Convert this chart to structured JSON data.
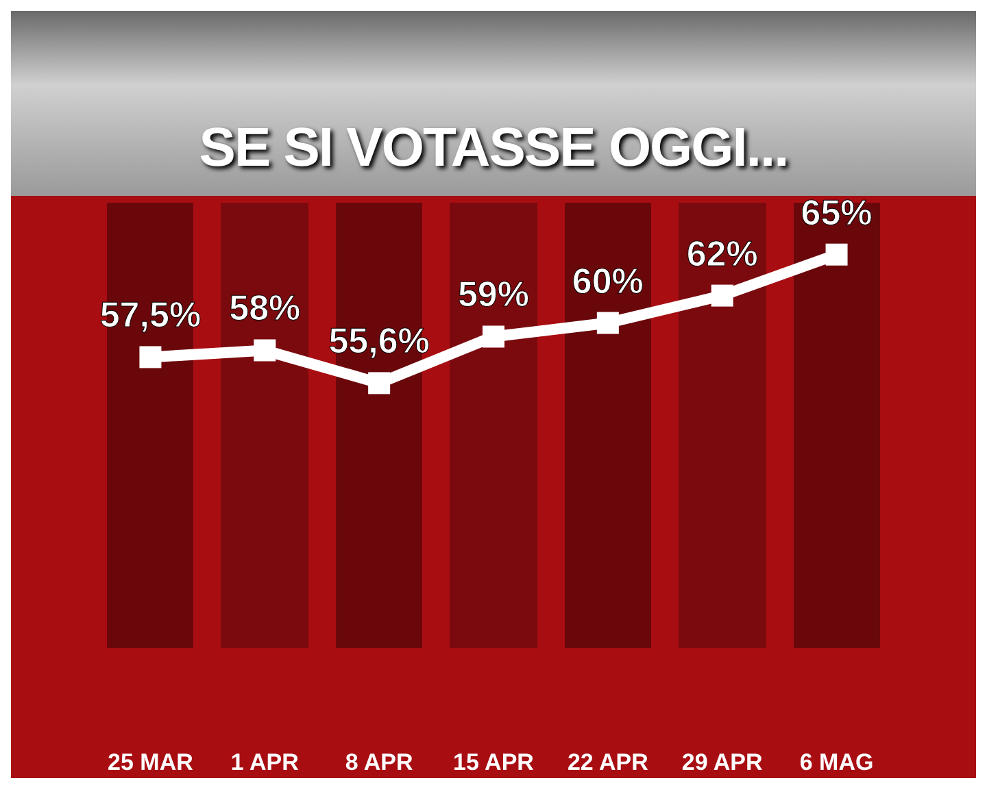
{
  "chart_data": {
    "type": "line",
    "title": "SE SI VOTASSE OGGI...",
    "categories": [
      "25 MAR",
      "1 APR",
      "8 APR",
      "15 APR",
      "22 APR",
      "29 APR",
      "6 MAG"
    ],
    "series": [
      {
        "color": "#ffffff",
        "values": [
          57.5,
          58,
          55.6,
          59,
          60,
          62,
          65
        ],
        "value_labels": [
          "57,5%",
          "58%",
          "55,6%",
          "59%",
          "60%",
          "62%",
          "65%"
        ]
      }
    ],
    "marker": "square",
    "line_style": "solid",
    "tick_labels": "x"
  }
}
